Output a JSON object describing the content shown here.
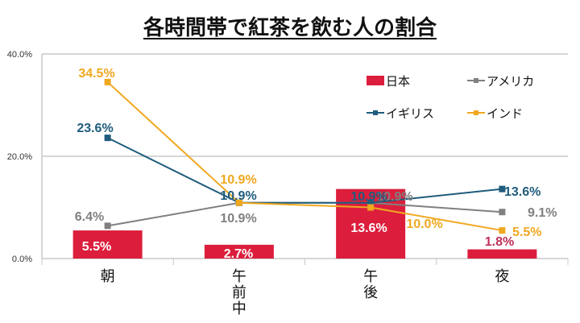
{
  "chart_data": {
    "type": "bar+line",
    "title": "各時間帯で紅茶を飲む人の割合",
    "categories": [
      "朝",
      "午前中",
      "午後",
      "夜"
    ],
    "ylim": [
      0,
      40
    ],
    "yticks": [
      "0.0%",
      "20.0%",
      "40.0%"
    ],
    "grid": true,
    "legend_position": "top-right",
    "series": [
      {
        "name": "日本",
        "kind": "bar",
        "color": "#dc1e3c",
        "values": [
          5.5,
          2.7,
          13.6,
          1.8
        ],
        "labels": [
          "5.5%",
          "2.7%",
          "13.6%",
          "1.8%"
        ]
      },
      {
        "name": "アメリカ",
        "kind": "line",
        "color": "#808080",
        "values": [
          6.4,
          10.9,
          10.9,
          9.1
        ],
        "labels": [
          "6.4%",
          "10.9%",
          "10.9%",
          "9.1%"
        ]
      },
      {
        "name": "イギリス",
        "kind": "line",
        "color": "#1f5c7d",
        "values": [
          23.6,
          10.9,
          10.9,
          13.6
        ],
        "labels": [
          "23.6%",
          "10.9%",
          "10.9%",
          "13.6%"
        ]
      },
      {
        "name": "インド",
        "kind": "line",
        "color": "#f0a820",
        "values": [
          34.5,
          10.9,
          10.0,
          5.5
        ],
        "labels": [
          "34.5%",
          "10.9%",
          "10.0%",
          "5.5%"
        ]
      }
    ]
  }
}
